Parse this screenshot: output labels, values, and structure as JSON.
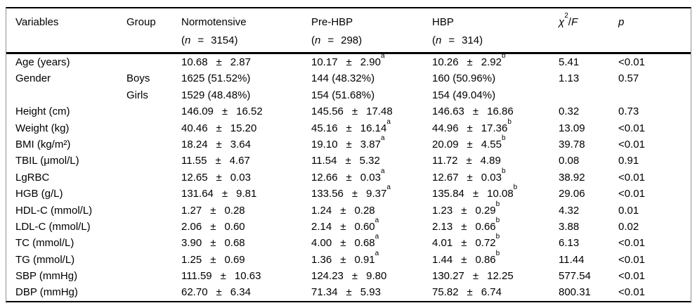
{
  "symbols": {
    "plus_minus": "±",
    "open_paren": "(",
    "n_italic": "n",
    "equals": "=",
    "close_paren": ")"
  },
  "header": {
    "variables": "Variables",
    "group": "Group",
    "cols": [
      {
        "label": "Normotensive",
        "n": "3154"
      },
      {
        "label": "Pre-HBP",
        "n": "298"
      },
      {
        "label": "HBP",
        "n": "314"
      }
    ],
    "chi_f": {
      "chi": "χ",
      "sup": "2",
      "slash": "/",
      "f": "F"
    },
    "p": "p"
  },
  "table": {
    "rows": [
      {
        "variable": "Age (years)",
        "group": "",
        "normotensive": {
          "mean": "10.68",
          "sd": "2.87",
          "sup": ""
        },
        "pre_hbp": {
          "mean": "10.17",
          "sd": "2.90",
          "sup": "a"
        },
        "hbp": {
          "mean": "10.26",
          "sd": "2.92",
          "sup": "b"
        },
        "chi_f": "5.41",
        "p": "<0.01"
      },
      {
        "variable": "Gender",
        "group": "Boys",
        "normotensive": {
          "text": "1625 (51.52%)"
        },
        "pre_hbp": {
          "text": "144 (48.32%)"
        },
        "hbp": {
          "text": "160 (50.96%)"
        },
        "chi_f": "1.13",
        "p": "0.57"
      },
      {
        "variable": "",
        "group": "Girls",
        "normotensive": {
          "text": "1529 (48.48%)"
        },
        "pre_hbp": {
          "text": "154 (51.68%)"
        },
        "hbp": {
          "text": "154 (49.04%)"
        },
        "chi_f": "",
        "p": ""
      },
      {
        "variable": "Height (cm)",
        "group": "",
        "normotensive": {
          "mean": "146.09",
          "sd": "16.52",
          "sup": ""
        },
        "pre_hbp": {
          "mean": "145.56",
          "sd": "17.48",
          "sup": ""
        },
        "hbp": {
          "mean": "146.63",
          "sd": "16.86",
          "sup": ""
        },
        "chi_f": "0.32",
        "p": "0.73"
      },
      {
        "variable": "Weight (kg)",
        "group": "",
        "normotensive": {
          "mean": "40.46",
          "sd": "15.20",
          "sup": ""
        },
        "pre_hbp": {
          "mean": "45.16",
          "sd": "16.14",
          "sup": "a"
        },
        "hbp": {
          "mean": "44.96",
          "sd": "17.36",
          "sup": "b"
        },
        "chi_f": "13.09",
        "p": "<0.01"
      },
      {
        "variable": "BMI (kg/m²)",
        "group": "",
        "normotensive": {
          "mean": "18.24",
          "sd": "3.64",
          "sup": ""
        },
        "pre_hbp": {
          "mean": "19.10",
          "sd": "3.87",
          "sup": "a"
        },
        "hbp": {
          "mean": "20.09",
          "sd": "4.55",
          "sup": "b"
        },
        "chi_f": "39.78",
        "p": "<0.01"
      },
      {
        "variable": "TBIL (μmol/L)",
        "group": "",
        "normotensive": {
          "mean": "11.55",
          "sd": "4.67",
          "sup": ""
        },
        "pre_hbp": {
          "mean": "11.54",
          "sd": "5.32",
          "sup": ""
        },
        "hbp": {
          "mean": "11.72",
          "sd": "4.89",
          "sup": ""
        },
        "chi_f": "0.08",
        "p": "0.91"
      },
      {
        "variable": "LgRBC",
        "group": "",
        "normotensive": {
          "mean": "12.65",
          "sd": "0.03",
          "sup": ""
        },
        "pre_hbp": {
          "mean": "12.66",
          "sd": "0.03",
          "sup": "a"
        },
        "hbp": {
          "mean": "12.67",
          "sd": "0.03",
          "sup": "b"
        },
        "chi_f": "38.92",
        "p": "<0.01"
      },
      {
        "variable": "HGB (g/L)",
        "group": "",
        "normotensive": {
          "mean": "131.64",
          "sd": "9.81",
          "sup": ""
        },
        "pre_hbp": {
          "mean": "133.56",
          "sd": "9.37",
          "sup": "a"
        },
        "hbp": {
          "mean": "135.84",
          "sd": "10.08",
          "sup": "b"
        },
        "chi_f": "29.06",
        "p": "<0.01"
      },
      {
        "variable": "HDL-C (mmol/L)",
        "group": "",
        "normotensive": {
          "mean": "1.27",
          "sd": "0.28",
          "sup": ""
        },
        "pre_hbp": {
          "mean": "1.24",
          "sd": "0.28",
          "sup": ""
        },
        "hbp": {
          "mean": "1.23",
          "sd": "0.29",
          "sup": "b"
        },
        "chi_f": "4.32",
        "p": "0.01"
      },
      {
        "variable": "LDL-C (mmol/L)",
        "group": "",
        "normotensive": {
          "mean": "2.06",
          "sd": "0.60",
          "sup": ""
        },
        "pre_hbp": {
          "mean": "2.14",
          "sd": "0.60",
          "sup": "a"
        },
        "hbp": {
          "mean": "2.13",
          "sd": "0.66",
          "sup": "b"
        },
        "chi_f": "3.88",
        "p": "0.02"
      },
      {
        "variable": "TC (mmol/L)",
        "group": "",
        "normotensive": {
          "mean": "3.90",
          "sd": "0.68",
          "sup": ""
        },
        "pre_hbp": {
          "mean": "4.00",
          "sd": "0.68",
          "sup": "a"
        },
        "hbp": {
          "mean": "4.01",
          "sd": "0.72",
          "sup": "b"
        },
        "chi_f": "6.13",
        "p": "<0.01"
      },
      {
        "variable": "TG (mmol/L)",
        "group": "",
        "normotensive": {
          "mean": "1.25",
          "sd": "0.69",
          "sup": ""
        },
        "pre_hbp": {
          "mean": "1.36",
          "sd": "0.91",
          "sup": "a"
        },
        "hbp": {
          "mean": "1.44",
          "sd": "0.86",
          "sup": "b"
        },
        "chi_f": "11.44",
        "p": "<0.01"
      },
      {
        "variable": "SBP (mmHg)",
        "group": "",
        "normotensive": {
          "mean": "111.59",
          "sd": "10.63",
          "sup": ""
        },
        "pre_hbp": {
          "mean": "124.23",
          "sd": "9.80",
          "sup": ""
        },
        "hbp": {
          "mean": "130.27",
          "sd": "12.25",
          "sup": ""
        },
        "chi_f": "577.54",
        "p": "<0.01"
      },
      {
        "variable": "DBP (mmHg)",
        "group": "",
        "normotensive": {
          "mean": "62.70",
          "sd": "6.34",
          "sup": ""
        },
        "pre_hbp": {
          "mean": "71.34",
          "sd": "5.93",
          "sup": ""
        },
        "hbp": {
          "mean": "75.82",
          "sd": "6.74",
          "sup": ""
        },
        "chi_f": "800.31",
        "p": "<0.01"
      }
    ]
  }
}
